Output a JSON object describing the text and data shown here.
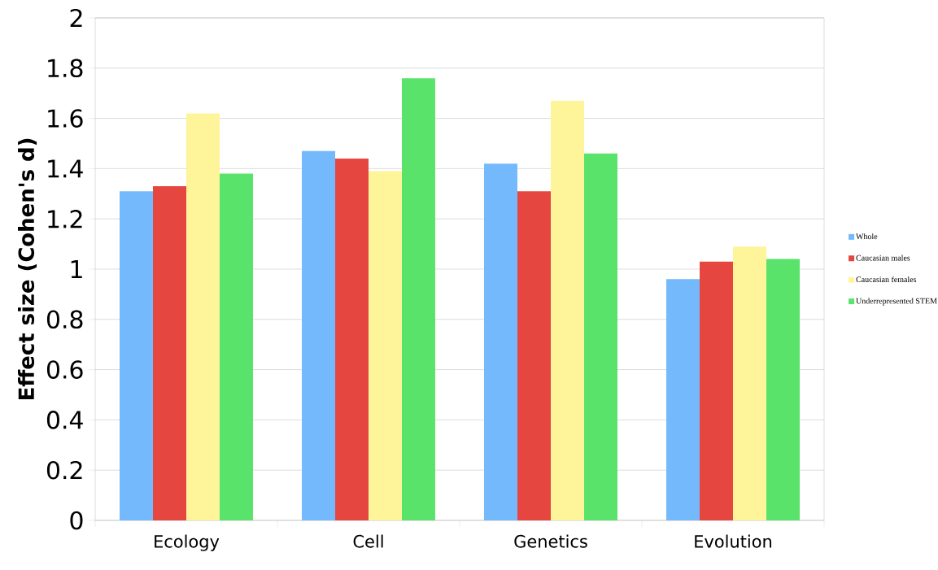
{
  "chart_data": {
    "type": "bar",
    "ylabel": "Effect size (Cohen's d)",
    "categories": [
      "Ecology",
      "Cell",
      "Genetics",
      "Evolution"
    ],
    "series": [
      {
        "name": "Whole",
        "color": "#74b9fc",
        "values": [
          1.31,
          1.47,
          1.42,
          0.96
        ]
      },
      {
        "name": "Caucasian males",
        "color": "#e54640",
        "values": [
          1.33,
          1.44,
          1.31,
          1.03
        ]
      },
      {
        "name": "Caucasian females",
        "color": "#fef49a",
        "values": [
          1.62,
          1.39,
          1.67,
          1.09
        ]
      },
      {
        "name": "Underrepresented STEM",
        "color": "#5ae36a",
        "values": [
          1.38,
          1.76,
          1.46,
          1.04
        ]
      }
    ],
    "ylim": [
      0,
      2
    ],
    "yticks": [
      0,
      0.2,
      0.4,
      0.6,
      0.8,
      1,
      1.2,
      1.4,
      1.6,
      1.8,
      2
    ],
    "grid": "y",
    "legend": "right"
  }
}
